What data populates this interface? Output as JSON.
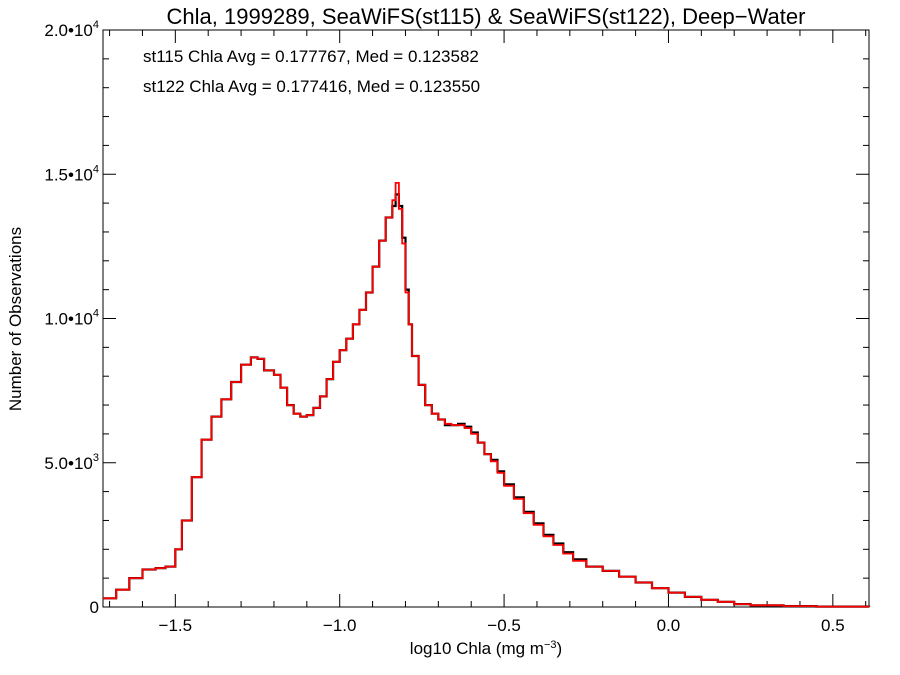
{
  "chart_data": {
    "type": "step",
    "title": "Chla, 1999289, SeaWiFS(st115) & SeaWiFS(st122), Deep−Water",
    "xlabel": "log10 Chla (mg m",
    "xlabel_sup": "−3",
    "xlabel_close": ")",
    "ylabel": "Number of Observations",
    "xlim": [
      -1.72,
      0.61
    ],
    "ylim": [
      0,
      20000
    ],
    "grid": false,
    "x_ticks": [
      {
        "value": -1.5,
        "label": "−1.5"
      },
      {
        "value": -1.0,
        "label": "−1.0"
      },
      {
        "value": -0.5,
        "label": "−0.5"
      },
      {
        "value": 0.0,
        "label": "0.0"
      },
      {
        "value": 0.5,
        "label": "0.5"
      }
    ],
    "y_ticks": [
      {
        "value": 0,
        "mant": "0",
        "exp": ""
      },
      {
        "value": 5000,
        "mant": "5.0•10",
        "exp": "3"
      },
      {
        "value": 10000,
        "mant": "1.0•10",
        "exp": "4"
      },
      {
        "value": 15000,
        "mant": "1.5•10",
        "exp": "4"
      },
      {
        "value": 20000,
        "mant": "2.0•10",
        "exp": "4"
      }
    ],
    "annotations": [
      {
        "text": "st115 Chla Avg = 0.177767, Med = 0.123582",
        "color": "#000000"
      },
      {
        "text": "st122 Chla Avg = 0.177416, Med = 0.123550",
        "color": "#ff0000"
      }
    ],
    "series": [
      {
        "color": "#000000",
        "points": [
          [
            -1.72,
            300
          ],
          [
            -1.68,
            600
          ],
          [
            -1.64,
            1000
          ],
          [
            -1.6,
            1300
          ],
          [
            -1.56,
            1350
          ],
          [
            -1.53,
            1400
          ],
          [
            -1.5,
            2000
          ],
          [
            -1.48,
            3000
          ],
          [
            -1.45,
            4500
          ],
          [
            -1.42,
            5800
          ],
          [
            -1.39,
            6600
          ],
          [
            -1.36,
            7200
          ],
          [
            -1.33,
            7800
          ],
          [
            -1.3,
            8400
          ],
          [
            -1.27,
            8650
          ],
          [
            -1.25,
            8600
          ],
          [
            -1.23,
            8200
          ],
          [
            -1.2,
            8050
          ],
          [
            -1.18,
            7600
          ],
          [
            -1.16,
            7000
          ],
          [
            -1.14,
            6700
          ],
          [
            -1.12,
            6600
          ],
          [
            -1.1,
            6650
          ],
          [
            -1.08,
            6900
          ],
          [
            -1.06,
            7300
          ],
          [
            -1.04,
            7900
          ],
          [
            -1.02,
            8500
          ],
          [
            -1.0,
            8900
          ],
          [
            -0.98,
            9300
          ],
          [
            -0.96,
            9800
          ],
          [
            -0.94,
            10300
          ],
          [
            -0.92,
            10900
          ],
          [
            -0.9,
            11800
          ],
          [
            -0.88,
            12700
          ],
          [
            -0.86,
            13500
          ],
          [
            -0.84,
            13900
          ],
          [
            -0.83,
            14300
          ],
          [
            -0.82,
            13900
          ],
          [
            -0.81,
            12800
          ],
          [
            -0.8,
            11000
          ],
          [
            -0.79,
            9800
          ],
          [
            -0.78,
            8700
          ],
          [
            -0.76,
            7700
          ],
          [
            -0.74,
            7000
          ],
          [
            -0.72,
            6700
          ],
          [
            -0.7,
            6500
          ],
          [
            -0.68,
            6300
          ],
          [
            -0.66,
            6300
          ],
          [
            -0.64,
            6350
          ],
          [
            -0.62,
            6250
          ],
          [
            -0.6,
            6050
          ],
          [
            -0.58,
            5700
          ],
          [
            -0.56,
            5300
          ],
          [
            -0.54,
            5100
          ],
          [
            -0.52,
            4700
          ],
          [
            -0.5,
            4250
          ],
          [
            -0.47,
            3800
          ],
          [
            -0.44,
            3300
          ],
          [
            -0.41,
            2900
          ],
          [
            -0.38,
            2500
          ],
          [
            -0.35,
            2200
          ],
          [
            -0.32,
            1900
          ],
          [
            -0.29,
            1650
          ],
          [
            -0.25,
            1400
          ],
          [
            -0.2,
            1250
          ],
          [
            -0.15,
            1050
          ],
          [
            -0.1,
            850
          ],
          [
            -0.05,
            650
          ],
          [
            0.0,
            500
          ],
          [
            0.05,
            350
          ],
          [
            0.1,
            250
          ],
          [
            0.15,
            180
          ],
          [
            0.2,
            100
          ],
          [
            0.25,
            60
          ],
          [
            0.35,
            30
          ],
          [
            0.45,
            15
          ],
          [
            0.61,
            5
          ]
        ]
      },
      {
        "color": "#ff0000",
        "points": [
          [
            -1.72,
            300
          ],
          [
            -1.68,
            600
          ],
          [
            -1.64,
            1000
          ],
          [
            -1.6,
            1300
          ],
          [
            -1.56,
            1350
          ],
          [
            -1.53,
            1400
          ],
          [
            -1.5,
            2000
          ],
          [
            -1.48,
            3000
          ],
          [
            -1.45,
            4500
          ],
          [
            -1.42,
            5800
          ],
          [
            -1.39,
            6600
          ],
          [
            -1.36,
            7200
          ],
          [
            -1.33,
            7800
          ],
          [
            -1.3,
            8400
          ],
          [
            -1.27,
            8650
          ],
          [
            -1.25,
            8600
          ],
          [
            -1.23,
            8200
          ],
          [
            -1.2,
            8050
          ],
          [
            -1.18,
            7600
          ],
          [
            -1.16,
            7000
          ],
          [
            -1.14,
            6700
          ],
          [
            -1.12,
            6600
          ],
          [
            -1.1,
            6650
          ],
          [
            -1.08,
            6900
          ],
          [
            -1.06,
            7300
          ],
          [
            -1.04,
            7900
          ],
          [
            -1.02,
            8500
          ],
          [
            -1.0,
            8900
          ],
          [
            -0.98,
            9300
          ],
          [
            -0.96,
            9800
          ],
          [
            -0.94,
            10300
          ],
          [
            -0.92,
            10900
          ],
          [
            -0.9,
            11800
          ],
          [
            -0.88,
            12700
          ],
          [
            -0.86,
            13500
          ],
          [
            -0.84,
            14100
          ],
          [
            -0.83,
            14700
          ],
          [
            -0.82,
            13800
          ],
          [
            -0.81,
            12600
          ],
          [
            -0.8,
            10900
          ],
          [
            -0.79,
            9800
          ],
          [
            -0.78,
            8700
          ],
          [
            -0.76,
            7700
          ],
          [
            -0.74,
            7000
          ],
          [
            -0.72,
            6700
          ],
          [
            -0.7,
            6500
          ],
          [
            -0.68,
            6350
          ],
          [
            -0.66,
            6300
          ],
          [
            -0.64,
            6300
          ],
          [
            -0.62,
            6200
          ],
          [
            -0.6,
            6000
          ],
          [
            -0.58,
            5700
          ],
          [
            -0.56,
            5300
          ],
          [
            -0.54,
            5050
          ],
          [
            -0.52,
            4650
          ],
          [
            -0.5,
            4200
          ],
          [
            -0.47,
            3750
          ],
          [
            -0.44,
            3250
          ],
          [
            -0.41,
            2850
          ],
          [
            -0.38,
            2450
          ],
          [
            -0.35,
            2150
          ],
          [
            -0.32,
            1850
          ],
          [
            -0.29,
            1600
          ],
          [
            -0.25,
            1400
          ],
          [
            -0.2,
            1250
          ],
          [
            -0.15,
            1050
          ],
          [
            -0.1,
            850
          ],
          [
            -0.05,
            650
          ],
          [
            0.0,
            500
          ],
          [
            0.05,
            350
          ],
          [
            0.1,
            250
          ],
          [
            0.15,
            180
          ],
          [
            0.2,
            100
          ],
          [
            0.25,
            60
          ],
          [
            0.35,
            30
          ],
          [
            0.45,
            15
          ],
          [
            0.61,
            5
          ]
        ]
      }
    ]
  }
}
